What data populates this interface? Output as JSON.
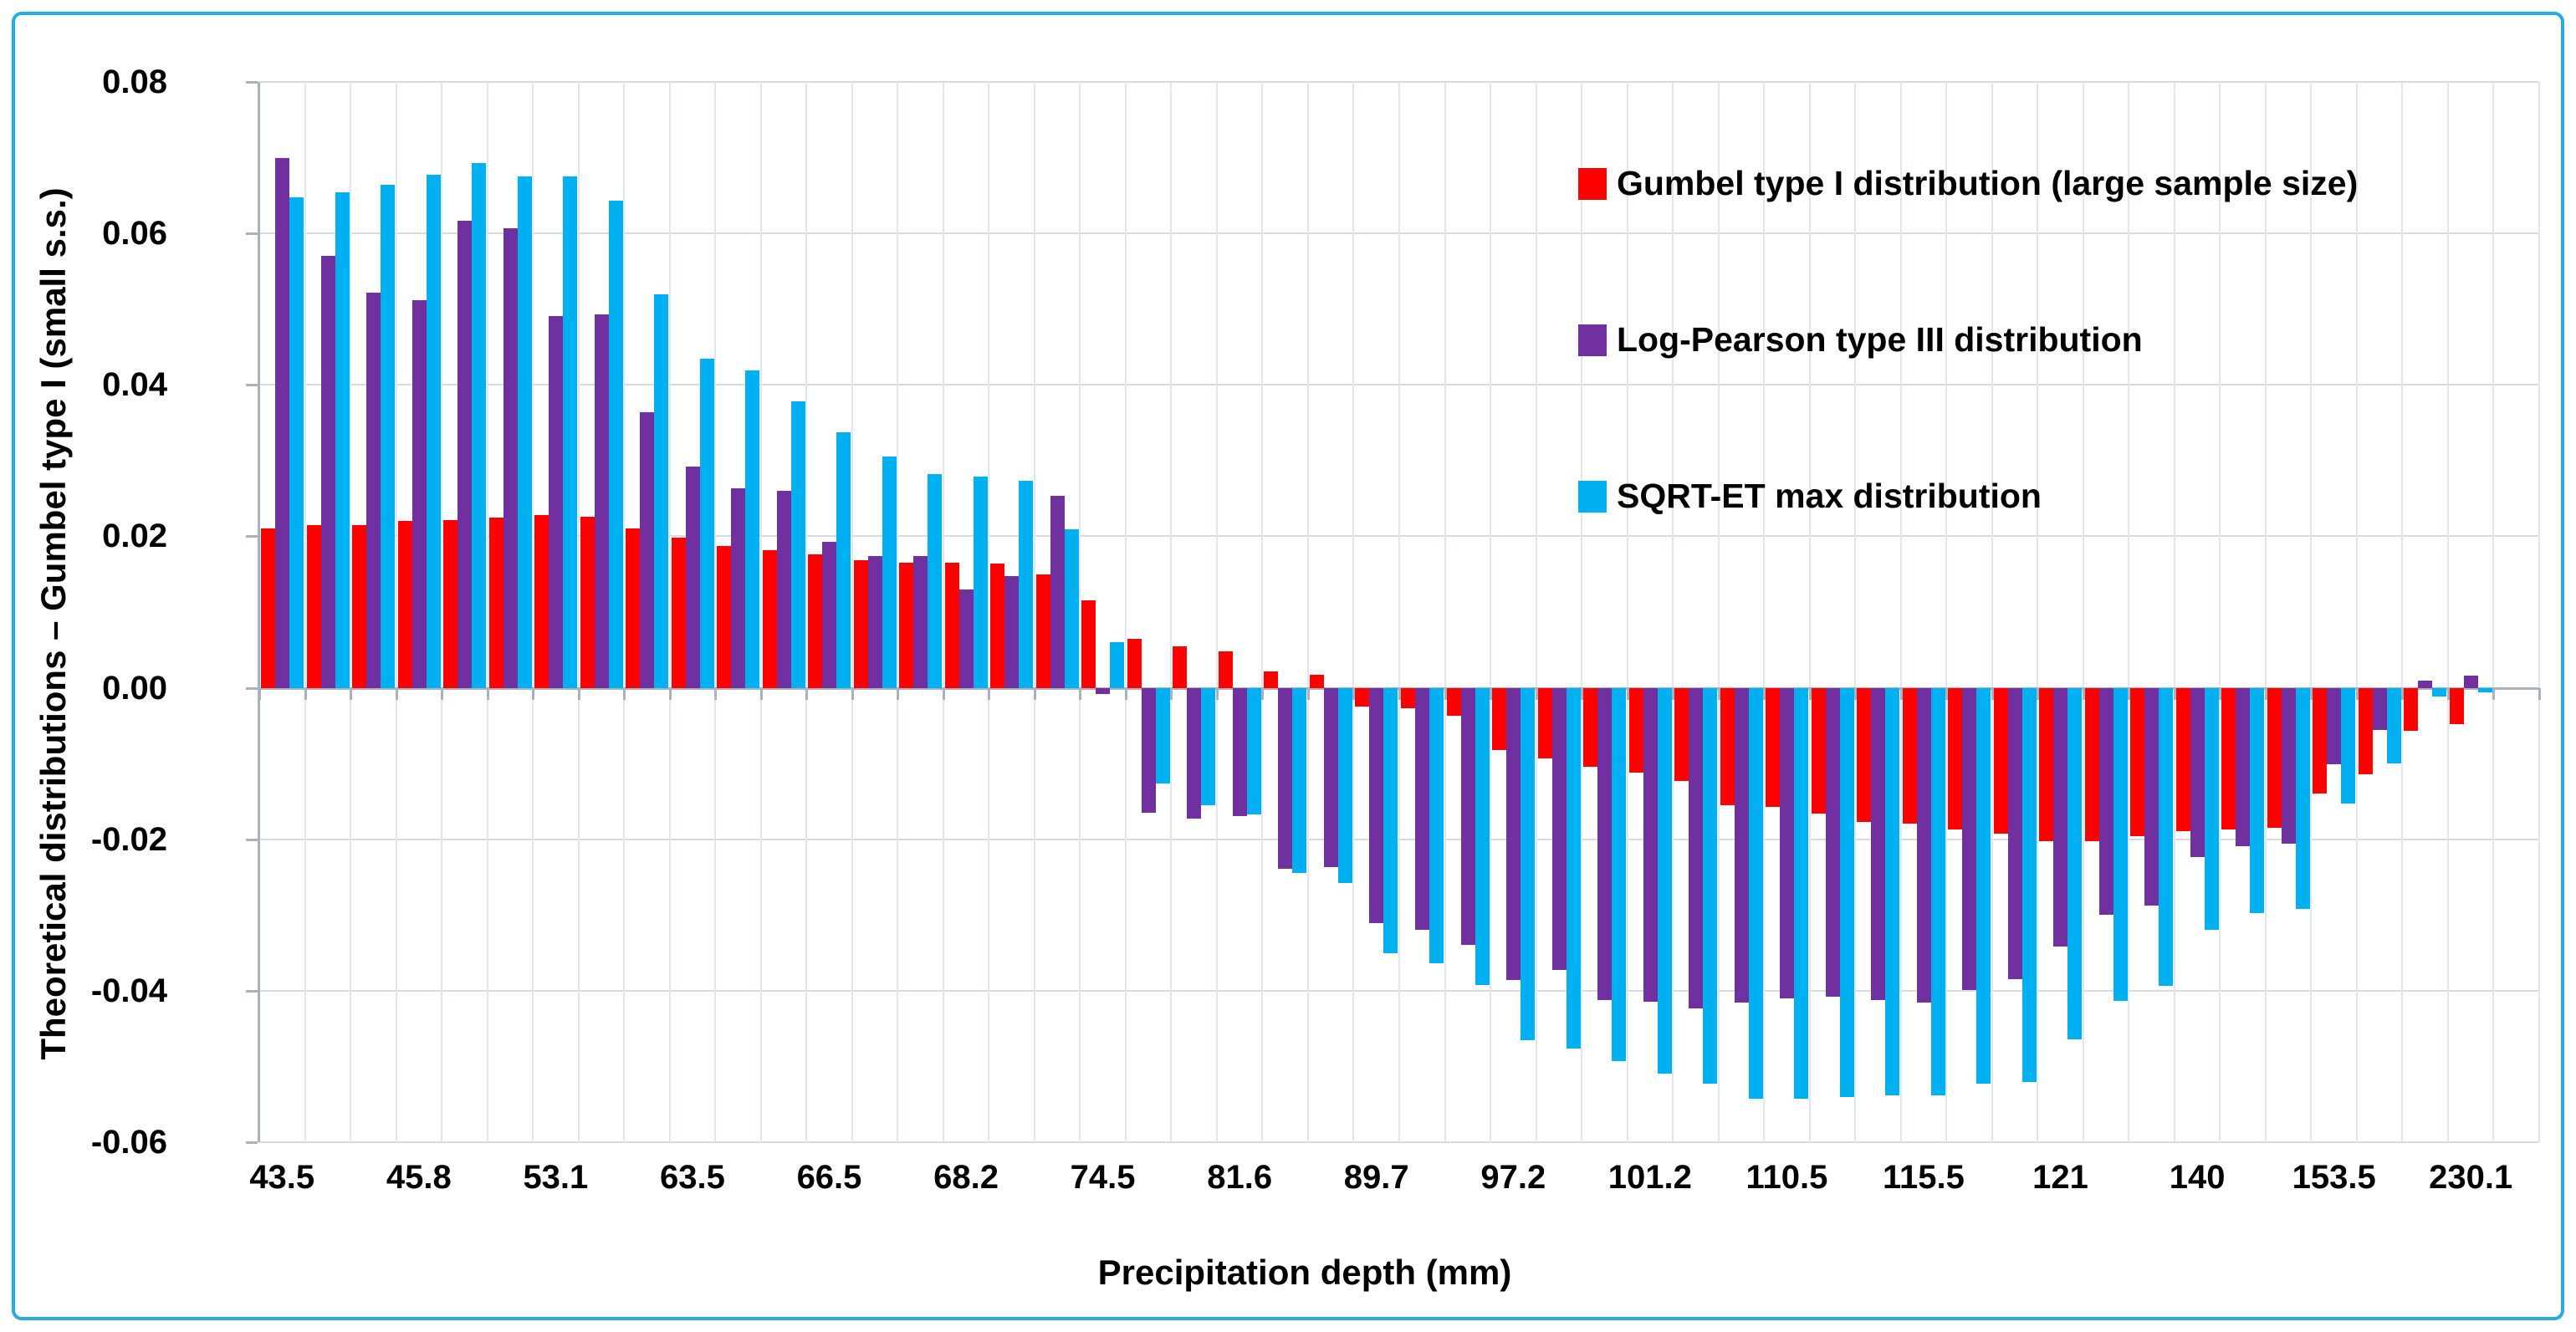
{
  "chart_data": {
    "type": "bar",
    "title": "",
    "xlabel": "Precipitation depth (mm)",
    "ylabel": "Theoretical distributions – Gumbel type I (small s.s.)",
    "ylim": [
      -0.06,
      0.08
    ],
    "ytick_step": 0.02,
    "ytick_labels": [
      "0.08",
      "0.06",
      "0.04",
      "0.02",
      "0.00",
      "-0.02",
      "-0.04",
      "-0.06"
    ],
    "grid": "horizontal-and-vertical",
    "legend_position": "inside-upper-right",
    "frame_color": "#29abe2",
    "category_label_interval": 3,
    "category_labels": [
      "43.5",
      "",
      "",
      "45.8",
      "",
      "",
      "53.1",
      "",
      "",
      "63.5",
      "",
      "",
      "66.5",
      "",
      "",
      "68.2",
      "",
      "",
      "74.5",
      "",
      "",
      "81.6",
      "",
      "",
      "89.7",
      "",
      "",
      "97.2",
      "",
      "",
      "101.2",
      "",
      "",
      "110.5",
      "",
      "",
      "115.5",
      "",
      "",
      "121",
      "",
      "",
      "140",
      "",
      "",
      "153.5",
      "",
      "",
      "230.1"
    ],
    "series": [
      {
        "name": "Gumbel type I distribution (large sample size)",
        "color": "#ff0000",
        "values": [
          0.021,
          0.0215,
          0.0215,
          0.022,
          0.0222,
          0.0225,
          0.0228,
          0.0226,
          0.021,
          0.0198,
          0.0187,
          0.0182,
          0.0176,
          0.0169,
          0.0165,
          0.0165,
          0.0164,
          0.015,
          0.0115,
          0.0065,
          0.0055,
          0.0048,
          0.0022,
          0.0017,
          -0.0025,
          -0.0027,
          -0.0037,
          -0.0082,
          -0.0093,
          -0.0104,
          -0.0112,
          -0.0123,
          -0.0155,
          -0.0157,
          -0.0166,
          -0.0177,
          -0.0179,
          -0.0187,
          -0.0193,
          -0.0202,
          -0.0202,
          -0.0196,
          -0.0189,
          -0.0187,
          -0.0185,
          -0.014,
          -0.0114,
          -0.0057,
          -0.0048
        ]
      },
      {
        "name": "Log-Pearson type III distribution",
        "color": "#7030a0",
        "values": [
          0.07,
          0.057,
          0.0522,
          0.0512,
          0.0617,
          0.0607,
          0.0491,
          0.0493,
          0.0364,
          0.0292,
          0.0263,
          0.026,
          0.0193,
          0.0174,
          0.0174,
          0.013,
          0.0147,
          0.0253,
          -0.0008,
          -0.0165,
          -0.0173,
          -0.0169,
          -0.0239,
          -0.0237,
          -0.0311,
          -0.032,
          -0.0339,
          -0.0386,
          -0.0373,
          -0.0412,
          -0.0414,
          -0.0423,
          -0.0416,
          -0.041,
          -0.0408,
          -0.0412,
          -0.0416,
          -0.0399,
          -0.0385,
          -0.0342,
          -0.03,
          -0.0288,
          -0.0224,
          -0.0209,
          -0.0206,
          -0.0101,
          -0.0056,
          0.001,
          0.0016
        ]
      },
      {
        "name": "SQRT-ET max distribution",
        "color": "#00b0f0",
        "values": [
          0.0648,
          0.0654,
          0.0664,
          0.0677,
          0.0693,
          0.0675,
          0.0675,
          0.0643,
          0.052,
          0.0434,
          0.0419,
          0.0378,
          0.0337,
          0.0305,
          0.0282,
          0.0279,
          0.0273,
          0.0209,
          0.006,
          -0.0126,
          -0.0155,
          -0.0167,
          -0.0245,
          -0.0258,
          -0.0351,
          -0.0364,
          -0.0392,
          -0.0465,
          -0.0476,
          -0.0493,
          -0.051,
          -0.0523,
          -0.0543,
          -0.0543,
          -0.054,
          -0.0538,
          -0.0538,
          -0.0523,
          -0.052,
          -0.0464,
          -0.0413,
          -0.0394,
          -0.032,
          -0.0297,
          -0.0292,
          -0.0153,
          -0.01,
          -0.0012,
          -0.0006
        ]
      }
    ]
  }
}
